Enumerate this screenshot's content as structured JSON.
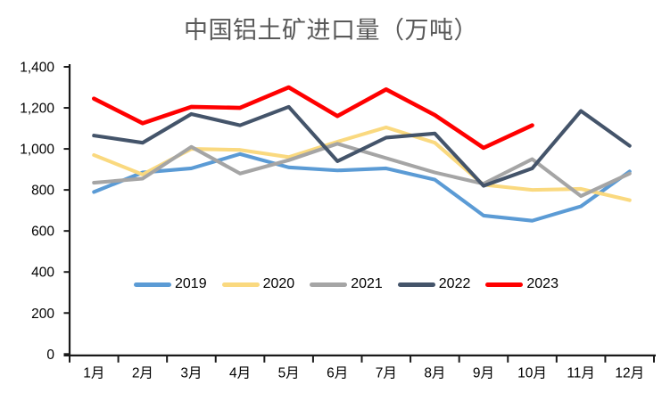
{
  "chart_data": {
    "type": "line",
    "title": "中国铝土矿进口量（万吨）",
    "categories": [
      "1月",
      "2月",
      "3月",
      "4月",
      "5月",
      "6月",
      "7月",
      "8月",
      "9月",
      "10月",
      "11月",
      "12月"
    ],
    "series": [
      {
        "name": "2019",
        "color": "#5B9BD5",
        "values": [
          790,
          885,
          905,
          975,
          910,
          895,
          905,
          850,
          675,
          650,
          720,
          890
        ]
      },
      {
        "name": "2020",
        "color": "#FAD97F",
        "values": [
          970,
          875,
          1000,
          995,
          960,
          1035,
          1105,
          1030,
          825,
          800,
          805,
          750
        ]
      },
      {
        "name": "2021",
        "color": "#A5A5A5",
        "values": [
          835,
          855,
          1010,
          880,
          945,
          1025,
          955,
          885,
          830,
          950,
          770,
          880
        ]
      },
      {
        "name": "2022",
        "color": "#44546A",
        "values": [
          1065,
          1030,
          1170,
          1115,
          1205,
          940,
          1055,
          1075,
          820,
          905,
          1185,
          1015
        ]
      },
      {
        "name": "2023",
        "color": "#FF0000",
        "values": [
          1245,
          1125,
          1205,
          1200,
          1300,
          1160,
          1290,
          1165,
          1005,
          1115
        ]
      }
    ],
    "xlabel": "",
    "ylabel": "",
    "ylim": [
      0,
      1400
    ],
    "ytick_step": 200,
    "ytick_labels": [
      "0",
      "200",
      "400",
      "600",
      "800",
      "1,000",
      "1,200",
      "1,400"
    ],
    "grid": false,
    "legend_position": "inside-bottom-center"
  },
  "colors": {
    "background": "#FFFFFF",
    "axis": "#1a1a1a",
    "tick_text": "#000000",
    "title_text": "#595959",
    "legend_text": "#000000"
  }
}
